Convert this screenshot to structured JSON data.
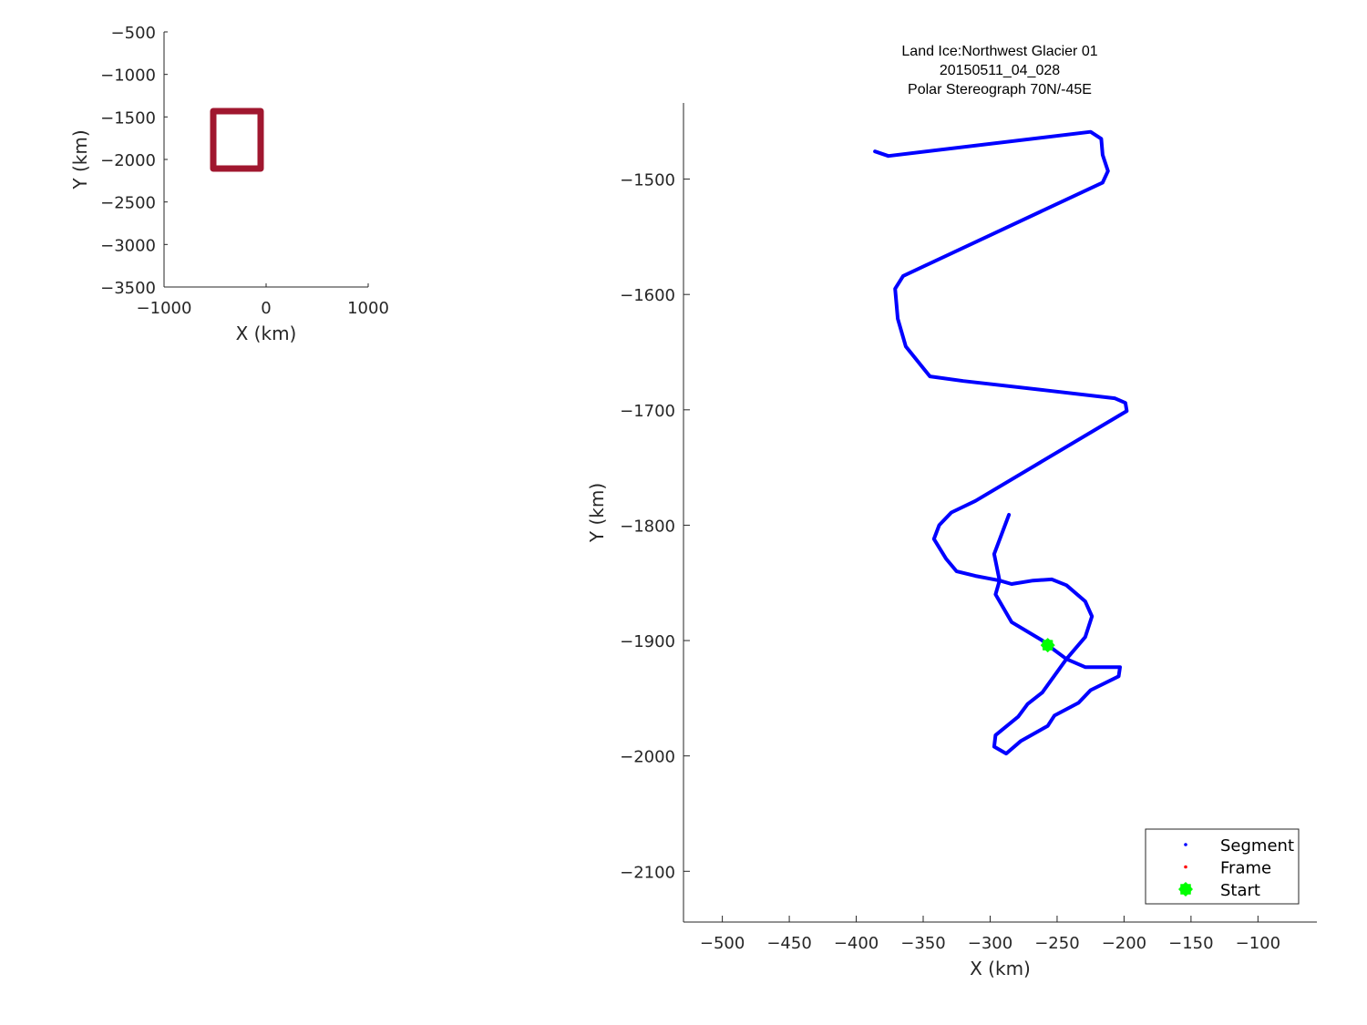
{
  "chart_data": [
    {
      "type": "line",
      "title": "",
      "xlabel": "X (km)",
      "ylabel": "Y (km)",
      "xlim": [
        -1000,
        1000
      ],
      "ylim": [
        -3500,
        -500
      ],
      "xticks": [
        -1000,
        0,
        1000
      ],
      "yticks": [
        -3500,
        -3000,
        -2500,
        -2000,
        -1500,
        -1000,
        -500
      ],
      "xtick_labels": [
        "−1000",
        "0",
        "1000"
      ],
      "ytick_labels": [
        "−3500",
        "−3000",
        "−2500",
        "−2000",
        "−1500",
        "−1000",
        "−500"
      ],
      "grid": false,
      "series": [
        {
          "color": "#a0172f",
          "x": [
            -518,
            -54,
            -54,
            -518,
            -518
          ],
          "y": [
            -1432,
            -1432,
            -2107,
            -2107,
            -1432
          ]
        }
      ]
    },
    {
      "type": "line",
      "title_lines": [
        "Land Ice:Northwest Glacier 01",
        "20150511_04_028",
        "Polar Stereograph 70N/-45E"
      ],
      "xlabel": "X (km)",
      "ylabel": "Y (km)",
      "xlim": [
        -529,
        -56
      ],
      "ylim": [
        -2144,
        -1434
      ],
      "xticks": [
        -500,
        -450,
        -400,
        -350,
        -300,
        -250,
        -200,
        -150,
        -100
      ],
      "yticks": [
        -2100,
        -2000,
        -1900,
        -1800,
        -1700,
        -1600,
        -1500
      ],
      "xtick_labels": [
        "−500",
        "−450",
        "−400",
        "−350",
        "−300",
        "−250",
        "−200",
        "−150",
        "−100"
      ],
      "ytick_labels": [
        "−2100",
        "−2000",
        "−1900",
        "−1800",
        "−1700",
        "−1600",
        "−1500"
      ],
      "grid": false,
      "legend_placement": "bottom-right",
      "legend": [
        {
          "label": "Segment",
          "color": "#0000ff",
          "marker": "dot"
        },
        {
          "label": "Frame",
          "color": "#ff0000",
          "marker": "dot"
        },
        {
          "label": "Start",
          "color": "#00ff00",
          "marker": "star"
        }
      ],
      "series": [
        {
          "name": "Segment",
          "color": "#0000ff",
          "x": [
            -286,
            -297,
            -293,
            -296,
            -284,
            -261,
            -257,
            -243,
            -229,
            -216,
            -203,
            -204,
            -225,
            -234,
            -252,
            -257,
            -277,
            -288,
            -297,
            -296,
            -279,
            -272,
            -261,
            -243,
            -229,
            -224,
            -229,
            -243,
            -254,
            -268,
            -284,
            -293,
            -311,
            -325,
            -333,
            -342,
            -338,
            -329,
            -311,
            -198,
            -199,
            -207,
            -259,
            -320,
            -345,
            -363,
            -369,
            -371,
            -365,
            -216,
            -212,
            -216,
            -217,
            -225,
            -376,
            -386
          ],
          "y": [
            -1791,
            -1825,
            -1848,
            -1860,
            -1884,
            -1900,
            -1904,
            -1916,
            -1923,
            -1923,
            -1923,
            -1931,
            -1943,
            -1954,
            -1965,
            -1974,
            -1987,
            -1998,
            -1992,
            -1982,
            -1966,
            -1955,
            -1945,
            -1916,
            -1897,
            -1879,
            -1866,
            -1852,
            -1847,
            -1848,
            -1851,
            -1848,
            -1844,
            -1840,
            -1829,
            -1812,
            -1800,
            -1789,
            -1779,
            -1701,
            -1694,
            -1690,
            -1683,
            -1675,
            -1671,
            -1645,
            -1621,
            -1595,
            -1584,
            -1503,
            -1493,
            -1479,
            -1465,
            -1459,
            -1480,
            -1476
          ]
        }
      ],
      "start": {
        "x": -257,
        "y": -1904,
        "color": "#00ff00"
      }
    }
  ]
}
